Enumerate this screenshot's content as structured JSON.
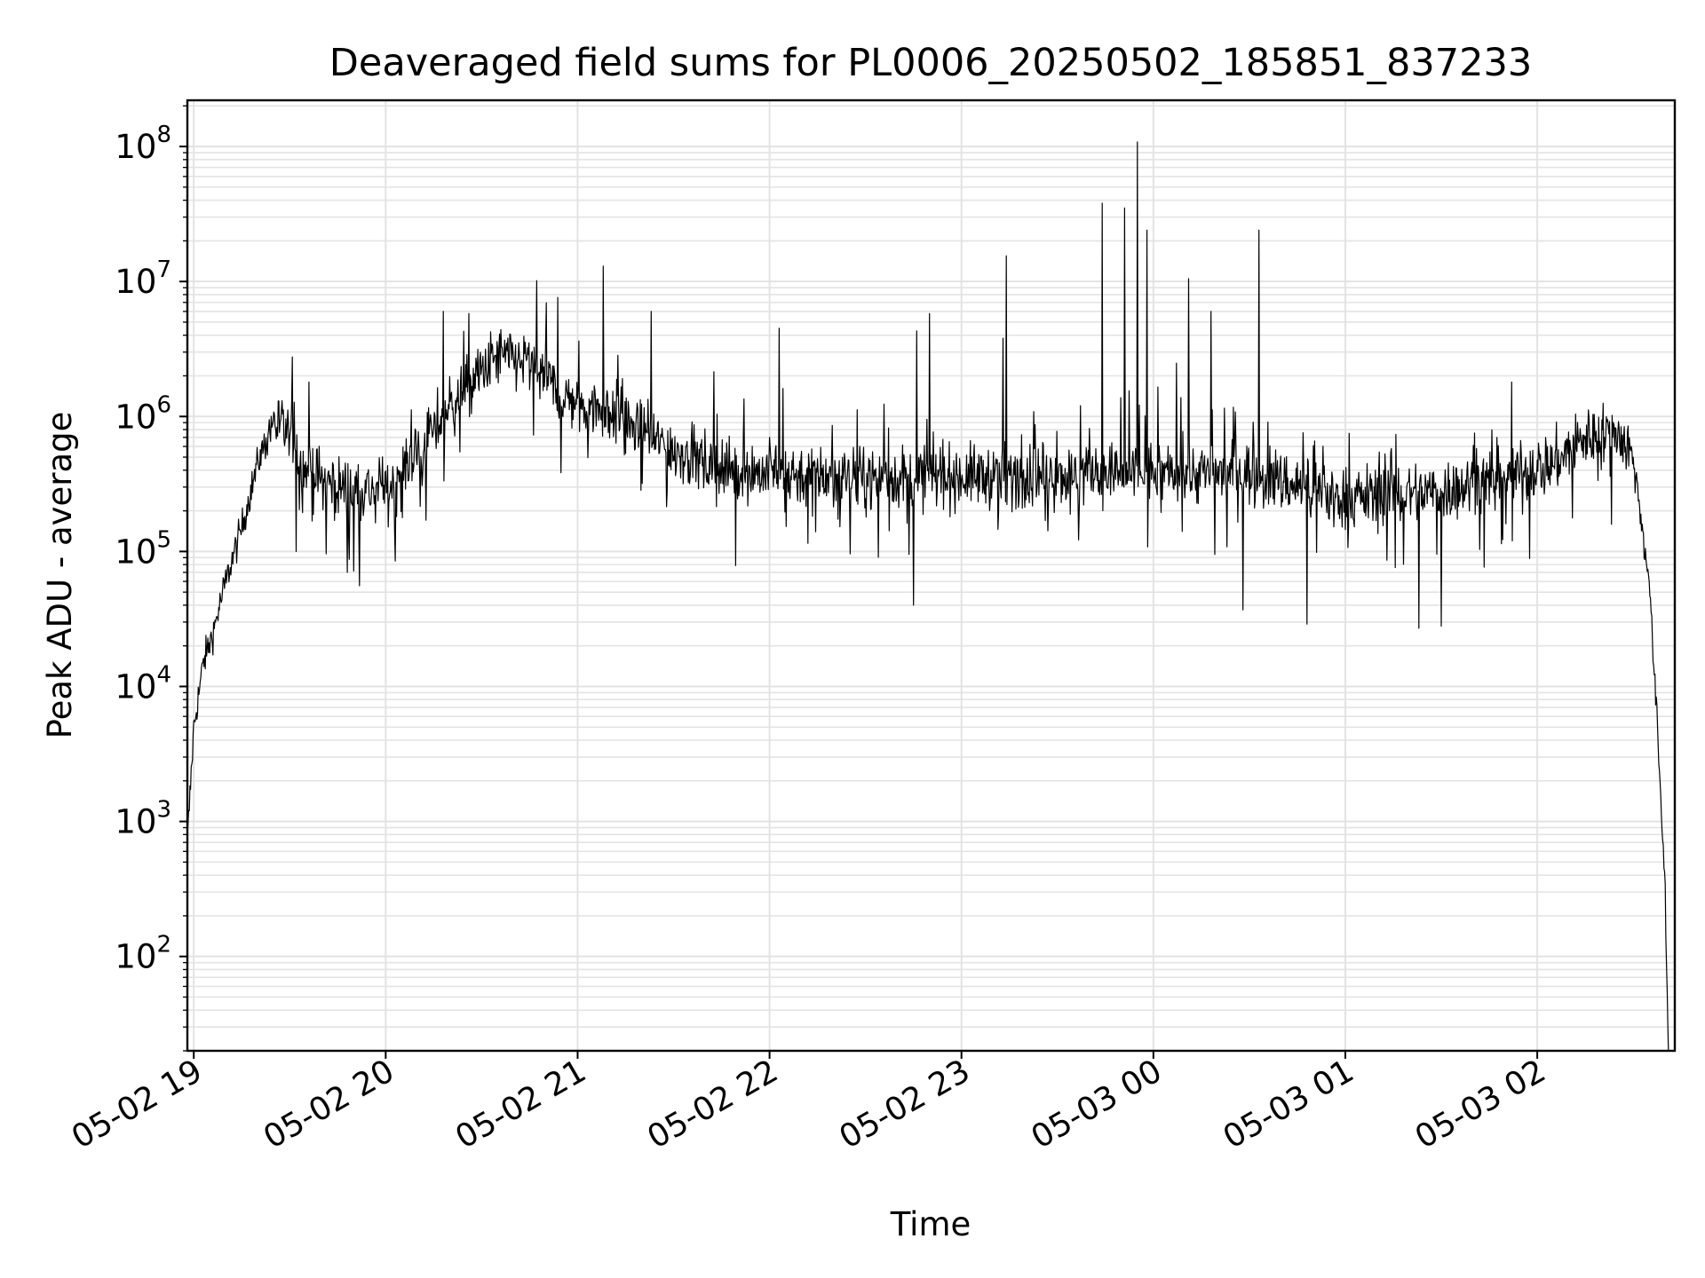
{
  "chart_data": {
    "type": "line",
    "title": "Deaveraged field sums for PL0006_20250502_185851_837233",
    "xlabel": "Time",
    "ylabel": "Peak ADU - average",
    "y_scale": "log",
    "ylim": [
      20,
      220000000
    ],
    "xlim": [
      "05-02 18:58",
      "05-03 02:43"
    ],
    "grid": true,
    "line_color": "#000000",
    "grid_color": "#e3e3e3",
    "x_ticks": [
      {
        "label": "05-02 19",
        "time": "05-02 19:00"
      },
      {
        "label": "05-02 20",
        "time": "05-02 20:00"
      },
      {
        "label": "05-02 21",
        "time": "05-02 21:00"
      },
      {
        "label": "05-02 22",
        "time": "05-02 22:00"
      },
      {
        "label": "05-02 23",
        "time": "05-02 23:00"
      },
      {
        "label": "05-03 00",
        "time": "05-03 00:00"
      },
      {
        "label": "05-03 01",
        "time": "05-03 01:00"
      },
      {
        "label": "05-03 02",
        "time": "05-03 02:00"
      }
    ],
    "y_ticks": [
      {
        "base": "10",
        "exp": "2",
        "value": 100
      },
      {
        "base": "10",
        "exp": "3",
        "value": 1000
      },
      {
        "base": "10",
        "exp": "4",
        "value": 10000
      },
      {
        "base": "10",
        "exp": "5",
        "value": 100000
      },
      {
        "base": "10",
        "exp": "6",
        "value": 1000000
      },
      {
        "base": "10",
        "exp": "7",
        "value": 10000000
      },
      {
        "base": "10",
        "exp": "8",
        "value": 100000000
      }
    ],
    "series": [
      {
        "baseline": [
          {
            "time": "05-02 18:58",
            "value": 700
          },
          {
            "time": "05-02 19:00",
            "value": 5000
          },
          {
            "time": "05-02 19:03",
            "value": 15000
          },
          {
            "time": "05-02 19:06",
            "value": 25000
          },
          {
            "time": "05-02 19:10",
            "value": 60000
          },
          {
            "time": "05-02 19:15",
            "value": 150000
          },
          {
            "time": "05-02 19:20",
            "value": 450000
          },
          {
            "time": "05-02 19:25",
            "value": 950000
          },
          {
            "time": "05-02 19:30",
            "value": 700000
          },
          {
            "time": "05-02 19:35",
            "value": 400000
          },
          {
            "time": "05-02 19:45",
            "value": 300000
          },
          {
            "time": "05-02 20:00",
            "value": 280000
          },
          {
            "time": "05-02 20:10",
            "value": 550000
          },
          {
            "time": "05-02 20:20",
            "value": 1200000
          },
          {
            "time": "05-02 20:35",
            "value": 2800000
          },
          {
            "time": "05-02 20:45",
            "value": 2500000
          },
          {
            "time": "05-02 20:55",
            "value": 1400000
          },
          {
            "time": "05-02 21:10",
            "value": 1100000
          },
          {
            "time": "05-02 21:25",
            "value": 650000
          },
          {
            "time": "05-02 21:45",
            "value": 400000
          },
          {
            "time": "05-02 22:30",
            "value": 350000
          },
          {
            "time": "05-03 00:00",
            "value": 380000
          },
          {
            "time": "05-03 00:30",
            "value": 380000
          },
          {
            "time": "05-03 01:00",
            "value": 250000
          },
          {
            "time": "05-03 01:30",
            "value": 280000
          },
          {
            "time": "05-03 01:50",
            "value": 350000
          },
          {
            "time": "05-03 02:05",
            "value": 450000
          },
          {
            "time": "05-03 02:15",
            "value": 700000
          },
          {
            "time": "05-03 02:25",
            "value": 780000
          },
          {
            "time": "05-03 02:30",
            "value": 500000
          },
          {
            "time": "05-03 02:35",
            "value": 60000
          },
          {
            "time": "05-03 02:38",
            "value": 3000
          },
          {
            "time": "05-03 02:40",
            "value": 300
          },
          {
            "time": "05-03 02:41",
            "value": 20
          }
        ],
        "spikes": [
          {
            "time": "05-02 19:36",
            "value": 1800000
          },
          {
            "time": "05-02 20:18",
            "value": 6000000
          },
          {
            "time": "05-02 20:26",
            "value": 5800000
          },
          {
            "time": "05-02 21:08",
            "value": 13000000
          },
          {
            "time": "05-02 21:23",
            "value": 6000000
          },
          {
            "time": "05-02 22:03",
            "value": 4500000
          },
          {
            "time": "05-02 22:46",
            "value": 4300000
          },
          {
            "time": "05-02 22:50",
            "value": 5800000
          },
          {
            "time": "05-02 23:13",
            "value": 3800000
          },
          {
            "time": "05-02 23:14",
            "value": 15500000
          },
          {
            "time": "05-02 23:44",
            "value": 38000000
          },
          {
            "time": "05-02 23:51",
            "value": 35000000
          },
          {
            "time": "05-02 23:55",
            "value": 108000000
          },
          {
            "time": "05-02 23:58",
            "value": 24000000
          },
          {
            "time": "05-03 00:11",
            "value": 10500000
          },
          {
            "time": "05-03 00:18",
            "value": 6000000
          },
          {
            "time": "05-03 00:33",
            "value": 24000000
          },
          {
            "time": "05-03 01:52",
            "value": 1800000
          }
        ],
        "dips": [
          {
            "time": "05-02 19:32",
            "value": 100000
          },
          {
            "time": "05-02 19:48",
            "value": 70000
          },
          {
            "time": "05-02 20:03",
            "value": 85000
          },
          {
            "time": "05-02 22:45",
            "value": 40000
          },
          {
            "time": "05-03 00:28",
            "value": 37000
          },
          {
            "time": "05-03 00:48",
            "value": 29000
          },
          {
            "time": "05-03 01:23",
            "value": 27000
          },
          {
            "time": "05-03 01:30",
            "value": 28000
          }
        ]
      }
    ]
  }
}
